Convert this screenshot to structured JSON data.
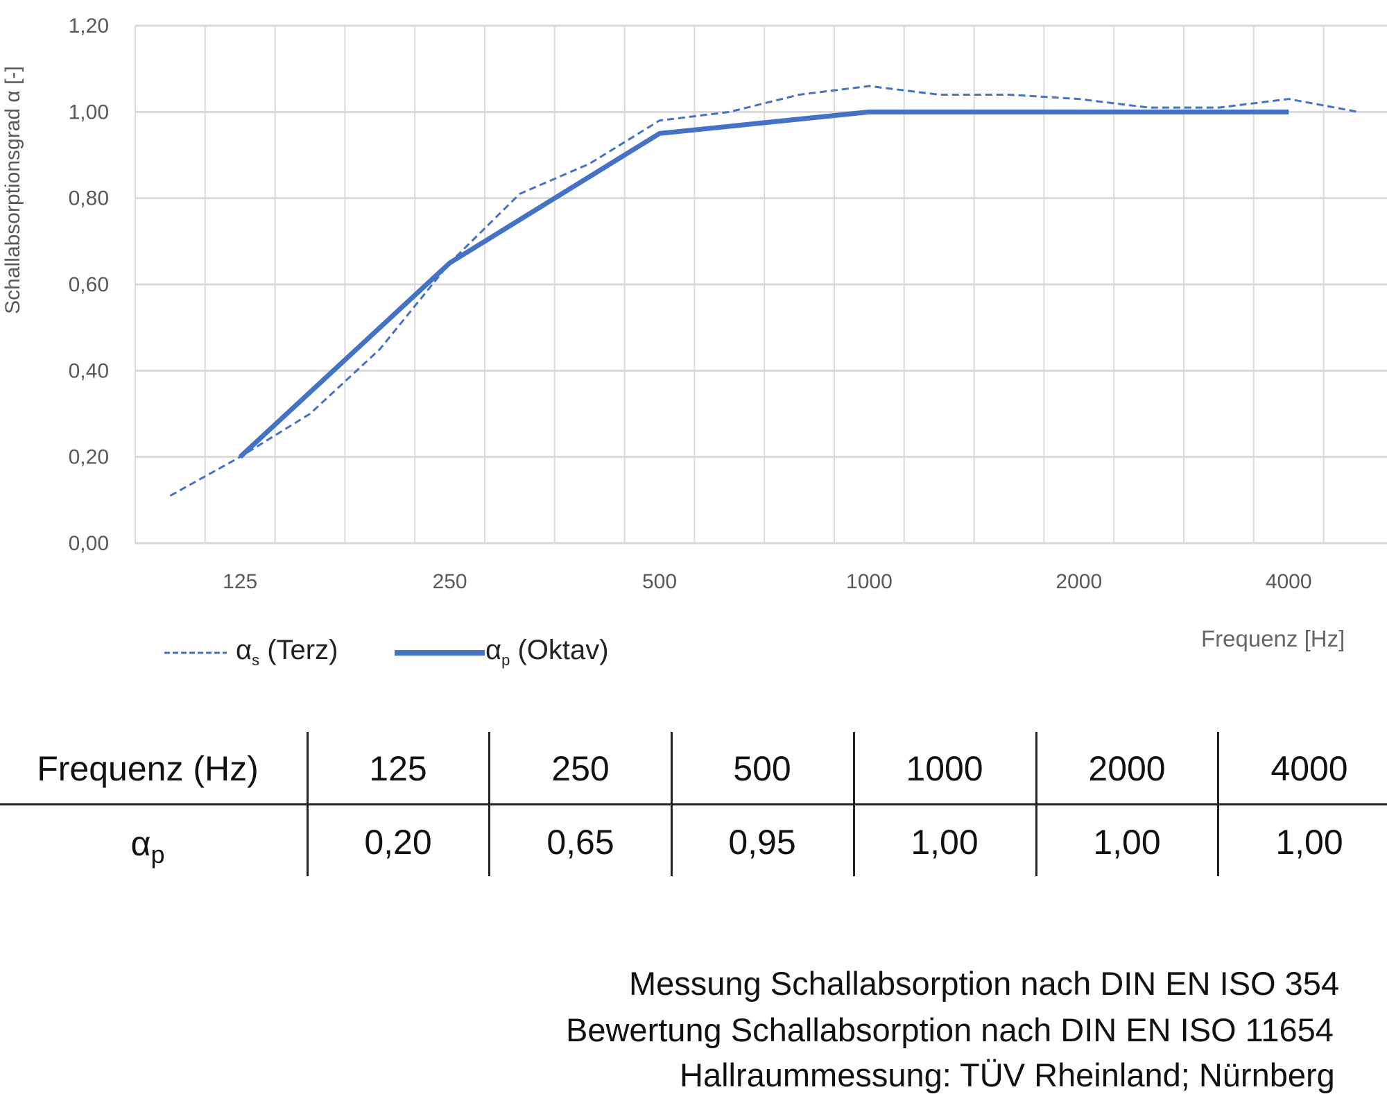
{
  "chart_data": {
    "type": "line",
    "ylabel": "Schallabsorptionsgrad α [-]",
    "xlabel": "Frequenz [Hz]",
    "categories": [
      "100",
      "125",
      "160",
      "200",
      "250",
      "315",
      "400",
      "500",
      "630",
      "800",
      "1000",
      "1250",
      "1600",
      "2000",
      "2500",
      "3150",
      "4000",
      "5000"
    ],
    "x_tick_labels": [
      "125",
      "250",
      "500",
      "1000",
      "2000",
      "4000"
    ],
    "y_tick_labels": [
      "0,00",
      "0,20",
      "0,40",
      "0,60",
      "0,80",
      "1,00",
      "1,20"
    ],
    "ylim": [
      0,
      1.2
    ],
    "grid": true,
    "legend_placement": "bottom-left",
    "series": [
      {
        "name": "αs (Terz)",
        "legend_main": "α",
        "legend_sub": "s",
        "legend_rest": " (Terz)",
        "style": "dashed",
        "color": "#4472C4",
        "x": [
          "100",
          "125",
          "160",
          "200",
          "250",
          "315",
          "400",
          "500",
          "630",
          "800",
          "1000",
          "1250",
          "1600",
          "2000",
          "2500",
          "3150",
          "4000",
          "5000"
        ],
        "values": [
          0.11,
          0.2,
          0.3,
          0.45,
          0.65,
          0.81,
          0.88,
          0.98,
          1.0,
          1.04,
          1.06,
          1.04,
          1.04,
          1.03,
          1.01,
          1.01,
          1.03,
          1.0
        ]
      },
      {
        "name": "αp (Oktav)",
        "legend_main": "α",
        "legend_sub": "p",
        "legend_rest": " (Oktav)",
        "style": "solid",
        "color": "#4472C4",
        "x": [
          "125",
          "250",
          "500",
          "1000",
          "2000",
          "4000"
        ],
        "values": [
          0.2,
          0.65,
          0.95,
          1.0,
          1.0,
          1.0
        ]
      }
    ]
  },
  "table": {
    "header_label": "Frequenz (Hz)",
    "row_label": "αp",
    "frequencies": [
      "125",
      "250",
      "500",
      "1000",
      "2000",
      "4000"
    ],
    "values": [
      "0,20",
      "0,65",
      "0,95",
      "1,00",
      "1,00",
      "1,00"
    ]
  },
  "footer": [
    "Messung Schallabsorption nach DIN EN ISO 354",
    "Bewertung Schallabsorption nach DIN EN ISO 11654",
    "Hallraummessung: TÜV Rheinland; Nürnberg"
  ]
}
